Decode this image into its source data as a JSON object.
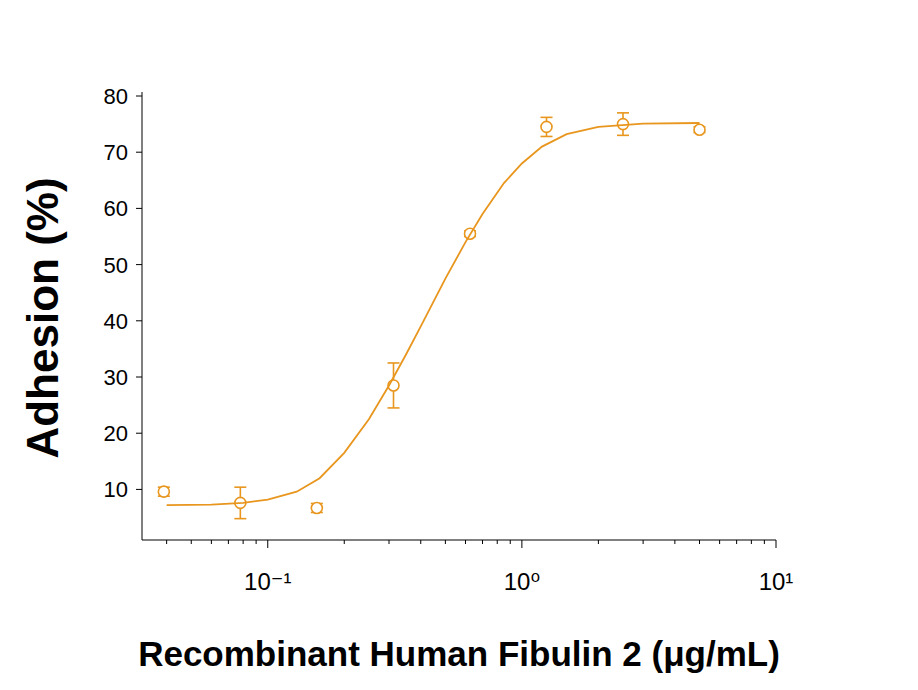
{
  "chart_data": {
    "type": "scatter",
    "x_label": "Recombinant Human Fibulin 2 (μg/mL)",
    "y_label": "Adhesion (%)",
    "log": "x",
    "grid": false,
    "color": "#e8961e",
    "xlim": [
      0.032,
      10
    ],
    "xticks": [
      {
        "value": 0.1,
        "label": "10⁻¹"
      },
      {
        "value": 1,
        "label": "10⁰"
      },
      {
        "value": 10,
        "label": "10¹"
      }
    ],
    "ylim": [
      1,
      80
    ],
    "yticks": [
      10,
      20,
      30,
      40,
      50,
      60,
      70,
      80
    ],
    "series": [
      {
        "type": "scatter",
        "marker": "circle",
        "x": [
          0.039,
          0.078,
          0.156,
          0.3125,
          0.625,
          1.25,
          2.5,
          5
        ],
        "values": [
          9.6,
          7.6,
          6.7,
          28.5,
          55.5,
          74.5,
          75,
          74
        ],
        "errors": [
          0.8,
          2.8,
          0.8,
          4.0,
          0.5,
          1.7,
          2.0,
          0.5
        ]
      },
      {
        "type": "line",
        "line_style": "solid",
        "x": [
          0.04,
          0.06,
          0.08,
          0.1,
          0.13,
          0.16,
          0.2,
          0.25,
          0.3,
          0.35,
          0.4,
          0.5,
          0.6,
          0.7,
          0.85,
          1.0,
          1.2,
          1.5,
          2,
          3,
          5
        ],
        "values": [
          7.2,
          7.3,
          7.6,
          8.2,
          9.6,
          12,
          16.5,
          22.5,
          28.5,
          34,
          39,
          47.5,
          54,
          59,
          64.5,
          68,
          71,
          73.2,
          74.5,
          75.1,
          75.2
        ]
      }
    ]
  }
}
